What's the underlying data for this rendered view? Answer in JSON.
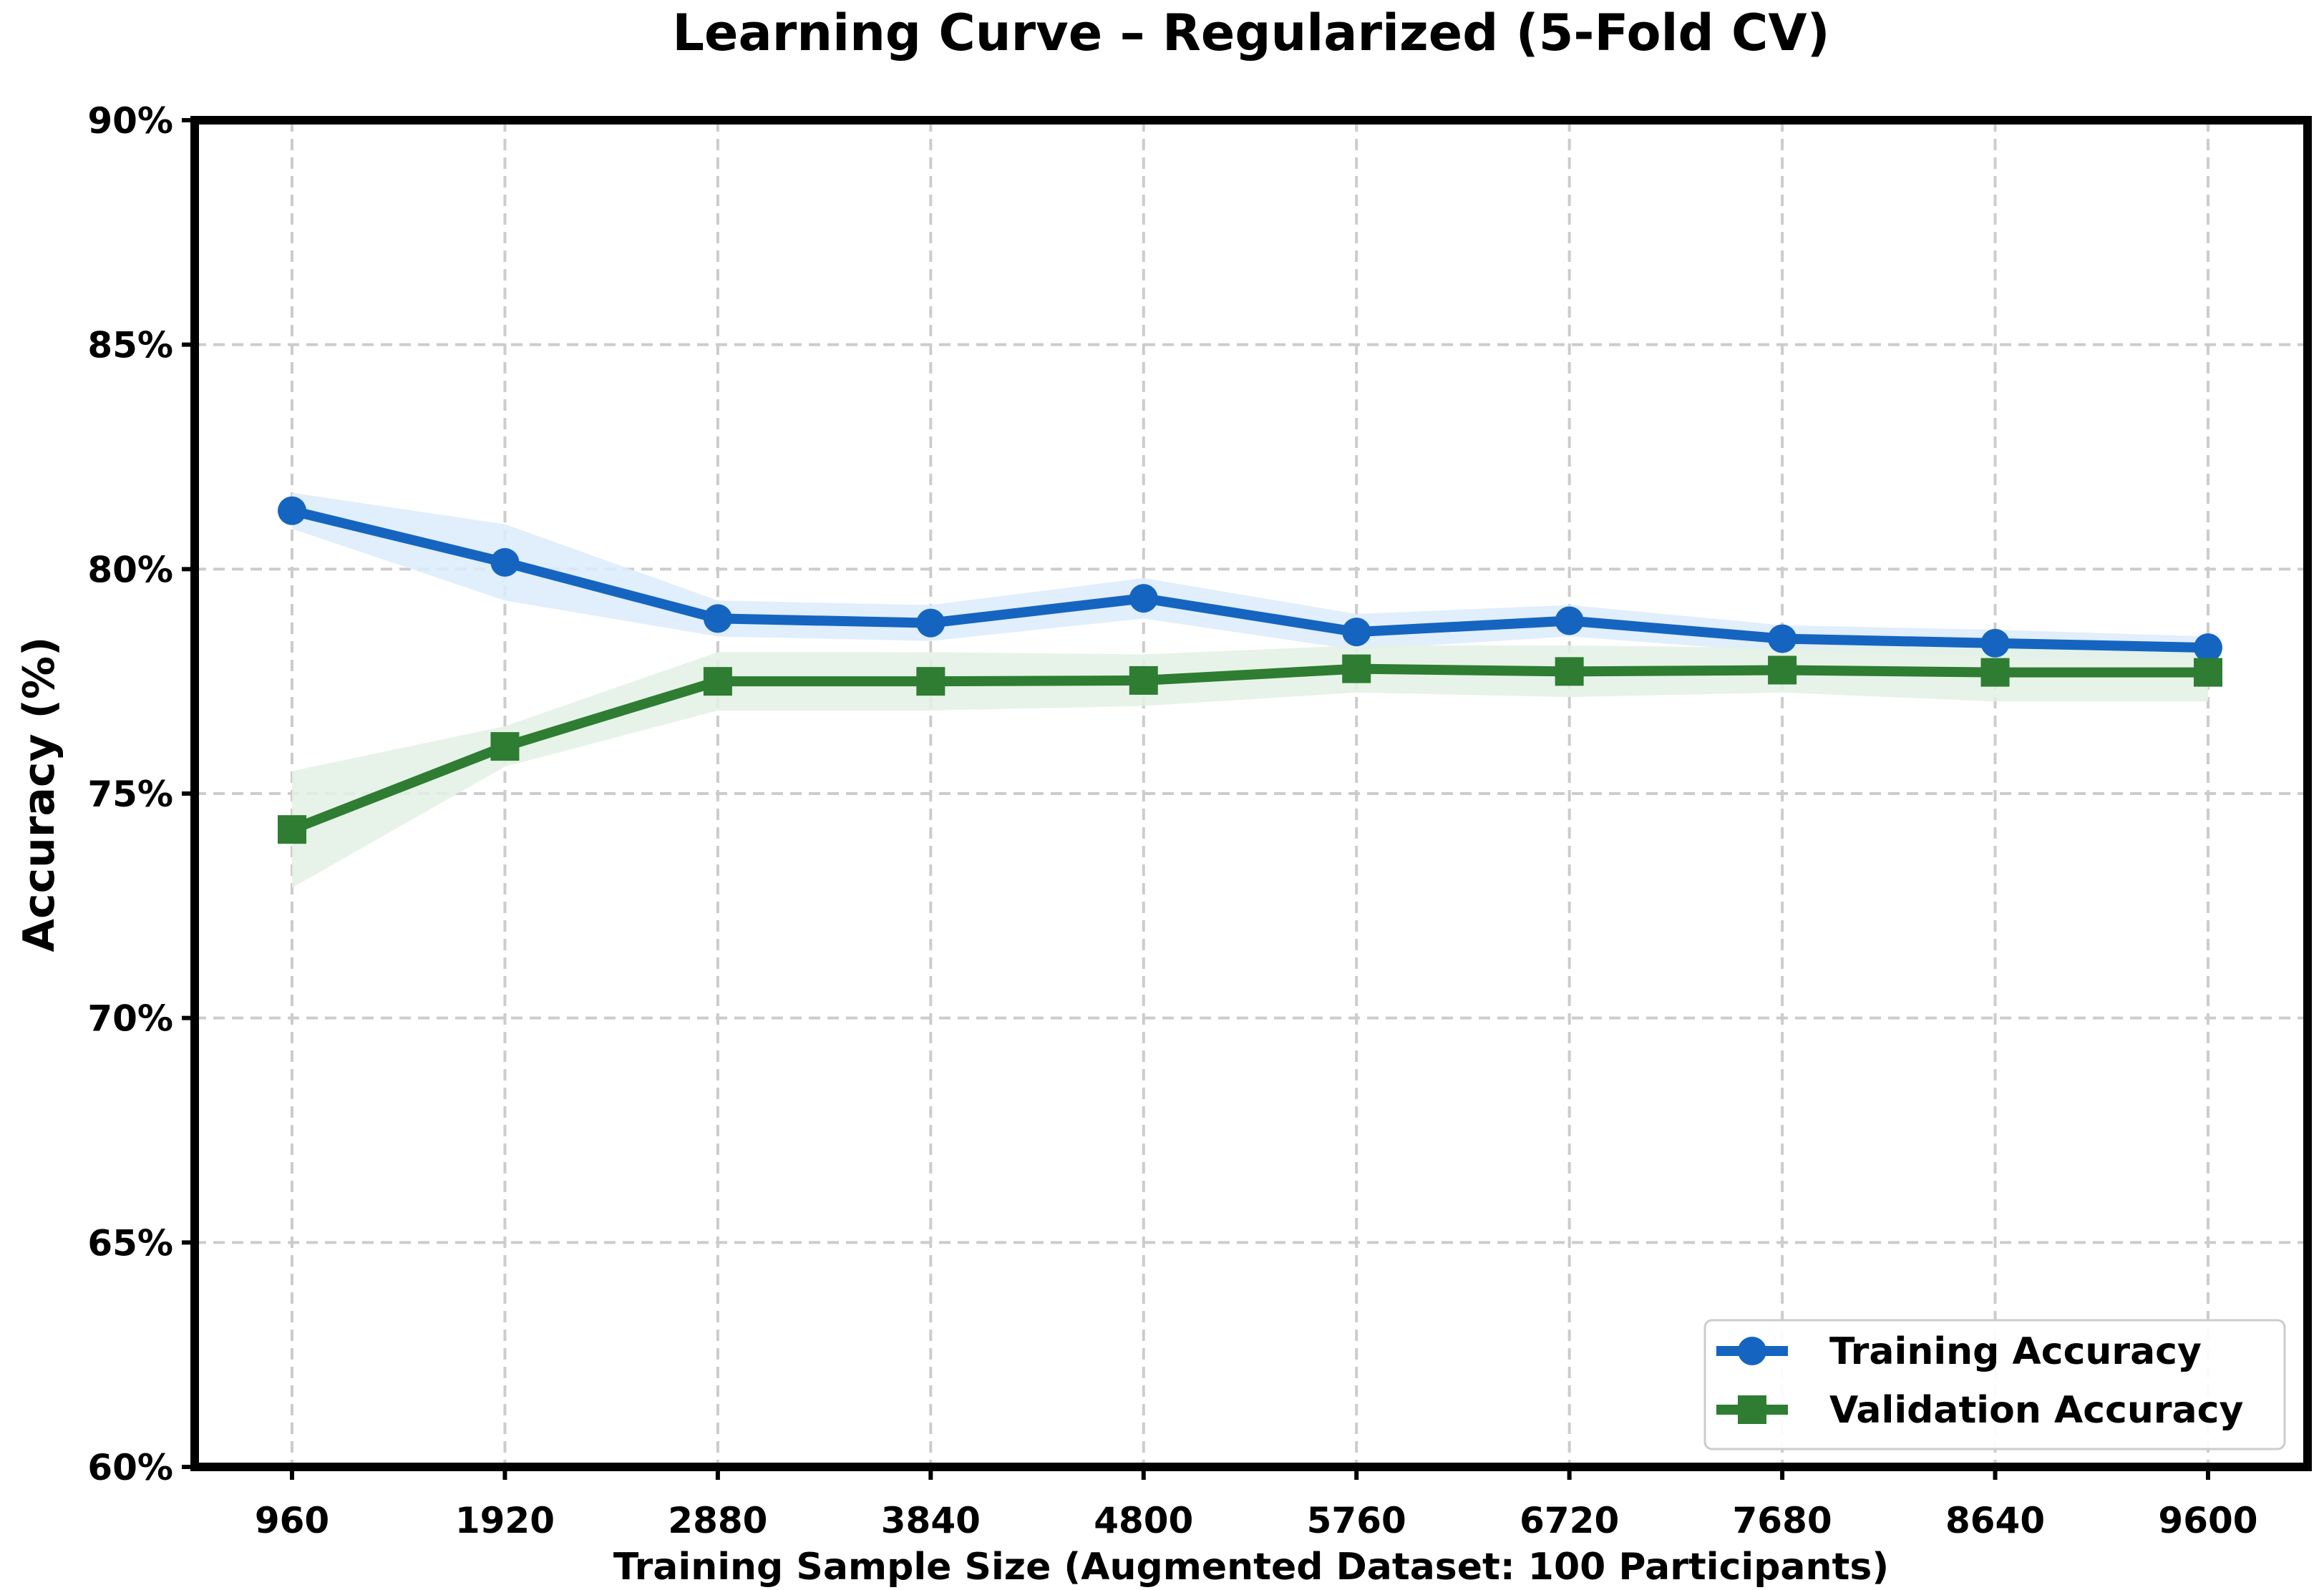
{
  "chart_data": {
    "type": "line",
    "title": "Learning Curve – Regularized (5-Fold CV)",
    "xlabel": "Training Sample Size (Augmented Dataset: 100 Participants)",
    "ylabel": "Accuracy (%)",
    "x": [
      960,
      1920,
      2880,
      3840,
      4800,
      5760,
      6720,
      7680,
      8640,
      9600
    ],
    "x_tick_labels": [
      "960",
      "1920",
      "2880",
      "3840",
      "4800",
      "5760",
      "6720",
      "7680",
      "8640",
      "9600"
    ],
    "ylim": [
      60,
      90
    ],
    "y_ticks": [
      60,
      65,
      70,
      75,
      80,
      85,
      90
    ],
    "y_tick_labels": [
      "60%",
      "65%",
      "70%",
      "75%",
      "80%",
      "85%",
      "90%"
    ],
    "grid": true,
    "legend_position": "bottom-right",
    "series": [
      {
        "name": "Training Accuracy",
        "marker": "circle",
        "color": "#1565C0",
        "band_color": "#DCEBFA",
        "values": [
          81.3,
          80.15,
          78.9,
          78.8,
          79.35,
          78.6,
          78.85,
          78.45,
          78.35,
          78.25
        ],
        "band_lower": [
          80.9,
          79.3,
          78.5,
          78.4,
          78.9,
          78.2,
          78.5,
          78.15,
          78.05,
          78.0
        ],
        "band_upper": [
          81.7,
          81.0,
          79.3,
          79.2,
          79.8,
          79.0,
          79.2,
          78.75,
          78.65,
          78.5
        ]
      },
      {
        "name": "Validation Accuracy",
        "marker": "square",
        "color": "#2E7D32",
        "band_color": "#E3F1E4",
        "values": [
          74.2,
          76.05,
          77.5,
          77.5,
          77.52,
          77.78,
          77.72,
          77.75,
          77.7,
          77.7
        ],
        "band_lower": [
          72.9,
          75.6,
          76.85,
          76.85,
          76.95,
          77.25,
          77.15,
          77.25,
          77.05,
          77.05
        ],
        "band_upper": [
          75.5,
          76.5,
          78.15,
          78.15,
          78.1,
          78.3,
          78.3,
          78.25,
          78.35,
          78.35
        ]
      }
    ]
  }
}
